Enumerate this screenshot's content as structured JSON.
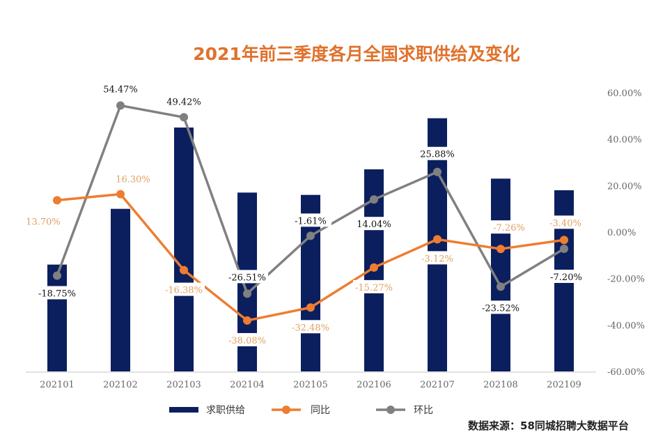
{
  "title": "2021年前三季度各月全国求职供给及变化",
  "source": "数据来源：58同城招聘大数据平台",
  "colors": {
    "bar": "#0b1f5e",
    "yoy": "#ed7d31",
    "mom": "#808080",
    "yoy_label": "#e0a060",
    "title": "#e0712c"
  },
  "chart_data": {
    "type": "bar+line",
    "title": "2021年前三季度各月全国求职供给及变化",
    "categories": [
      "202101",
      "202102",
      "202103",
      "202104",
      "202105",
      "202106",
      "202107",
      "202108",
      "202109"
    ],
    "series": [
      {
        "name": "求职供给",
        "type": "bar",
        "axis": "left (unlabeled)",
        "values": [
          46,
          70,
          105,
          77,
          76,
          87,
          109,
          83,
          78
        ]
      },
      {
        "name": "同比",
        "type": "line",
        "axis": "right",
        "values": [
          13.7,
          16.3,
          -16.38,
          -38.08,
          -32.48,
          -15.27,
          -3.12,
          -7.26,
          -3.4
        ],
        "labels": [
          "13.70%",
          "16.30%",
          "-16.38%",
          "-38.08%",
          "-32.48%",
          "-15.27%",
          "-3.12%",
          "-7.26%",
          "-3.40%"
        ]
      },
      {
        "name": "环比",
        "type": "line",
        "axis": "right",
        "values": [
          -18.75,
          54.47,
          49.42,
          -26.51,
          -1.61,
          14.04,
          25.88,
          -23.52,
          -7.2
        ],
        "labels": [
          "-18.75%",
          "54.47%",
          "49.42%",
          "-26.51%",
          "-1.61%",
          "14.04%",
          "25.88%",
          "-23.52%",
          "-7.20%"
        ]
      }
    ],
    "left_axis": {
      "visible": false,
      "ylim": [
        0,
        120
      ]
    },
    "right_axis": {
      "ylim": [
        -60,
        60
      ],
      "ticks": [
        "60.00%",
        "40.00%",
        "20.00%",
        "0.00%",
        "-20.00%",
        "-40.00%",
        "-60.00%"
      ]
    },
    "grid": false,
    "legend": "bottom"
  }
}
